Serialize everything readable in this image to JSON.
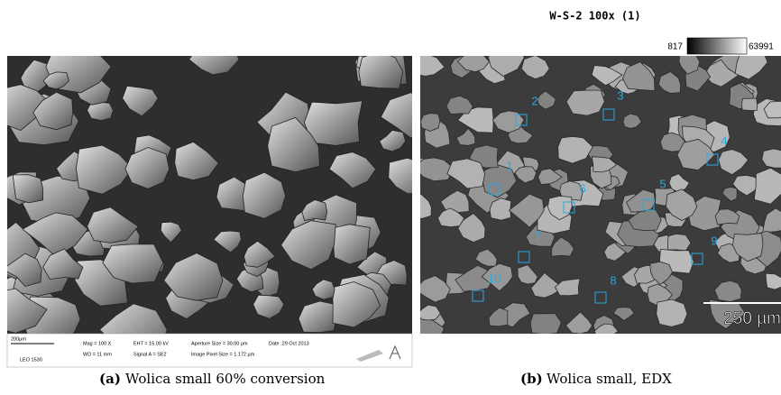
{
  "figure_a": {
    "label": "(a)",
    "caption": "Wolica small 60% conversion",
    "info": {
      "scale": "200µm",
      "instrument": "LEO 1530",
      "mag": "Mag =  100 X",
      "wd": "WD =  11 mm",
      "eht": "EHT = 15.00 kV",
      "signal": "Signal A = SE2",
      "aperture": "Aperture Size = 30.00 µm",
      "pixel": "Image Pixel Size = 1.172 µm",
      "date": "Date :29 Oct 2013"
    }
  },
  "figure_b": {
    "label": "(b)",
    "caption": "Wolica small, EDX",
    "title": "W-S-2 100x (1)",
    "range_min": "817",
    "range_max": "63991",
    "scale": "250 µm",
    "markers": [
      "1",
      "2",
      "3",
      "4",
      "5",
      "6",
      "7",
      "8",
      "9",
      "10"
    ]
  }
}
